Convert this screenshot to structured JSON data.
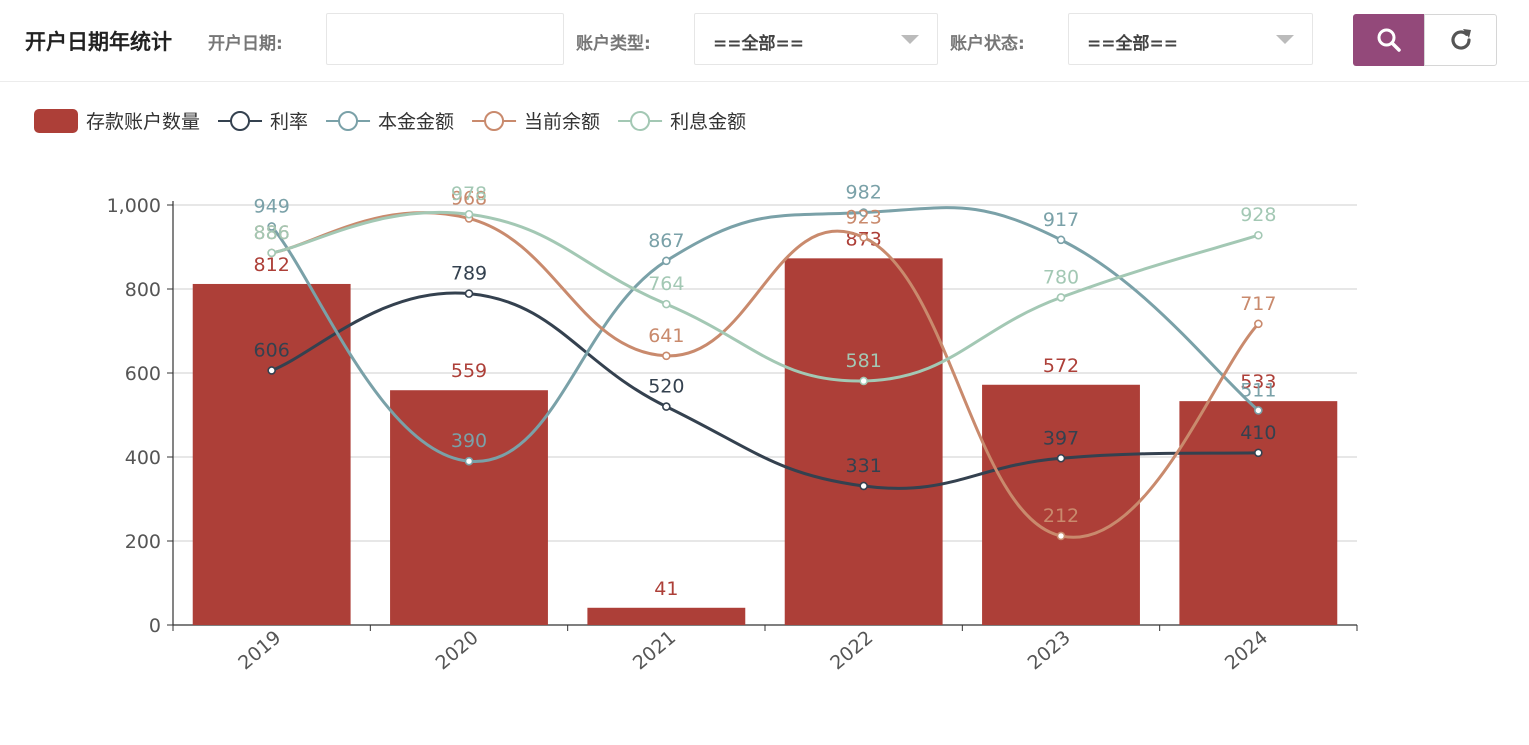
{
  "header": {
    "title": "开户日期年统计",
    "filters": {
      "date_label": "开户日期:",
      "date_value": "",
      "type_label": "账户类型:",
      "type_value": "==全部==",
      "status_label": "账户状态:",
      "status_value": "==全部=="
    },
    "search_icon": "search-icon",
    "refresh_icon": "refresh-icon"
  },
  "colors": {
    "accent": "#93497a",
    "bar": "#ad3f38",
    "rate": "#34414f",
    "principal": "#7aa1a8",
    "balance": "#c98a6d",
    "interest": "#a3c8b4"
  },
  "chart_data": {
    "type": "bar",
    "categories": [
      "2019",
      "2020",
      "2021",
      "2022",
      "2023",
      "2024"
    ],
    "ylim": [
      0,
      1000
    ],
    "yticks": [
      "0",
      "200",
      "400",
      "600",
      "800",
      "1,000"
    ],
    "grid": true,
    "legend_position": "top-left",
    "series": [
      {
        "name": "存款账户数量",
        "type": "bar",
        "color": "#ad3f38",
        "values": [
          812,
          559,
          41,
          873,
          572,
          533
        ]
      },
      {
        "name": "利率",
        "type": "line",
        "color": "#34414f",
        "values": [
          606,
          789,
          520,
          331,
          397,
          410
        ]
      },
      {
        "name": "本金金额",
        "type": "line",
        "color": "#7aa1a8",
        "values": [
          949,
          390,
          867,
          982,
          917,
          511
        ]
      },
      {
        "name": "当前余额",
        "type": "line",
        "color": "#c98a6d",
        "values": [
          886,
          968,
          641,
          923,
          212,
          717
        ]
      },
      {
        "name": "利息金额",
        "type": "line",
        "color": "#a3c8b4",
        "values": [
          886,
          978,
          764,
          581,
          780,
          928
        ]
      }
    ]
  }
}
